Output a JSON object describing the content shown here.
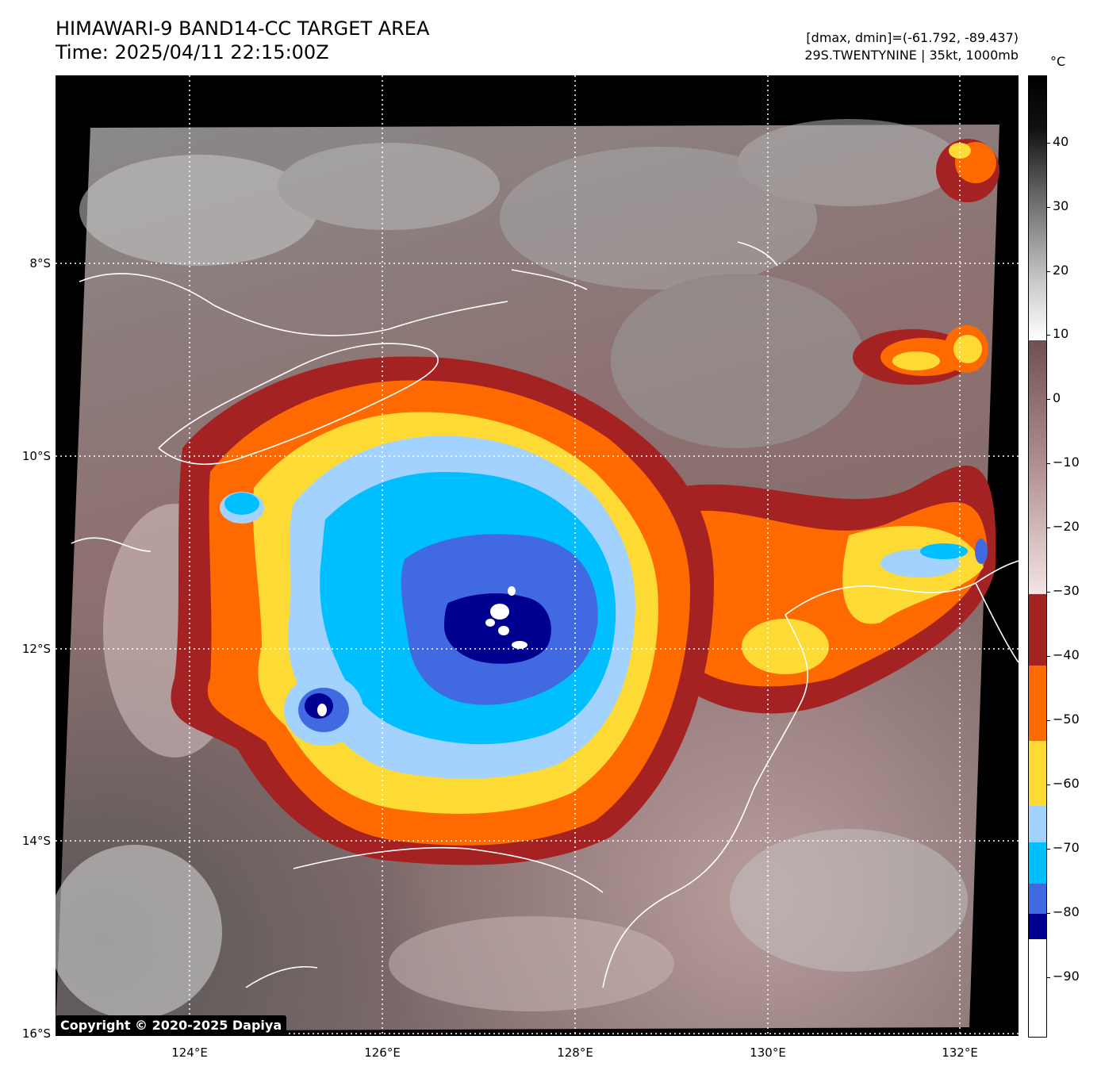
{
  "header": {
    "title": "HIMAWARI-9 BAND14-CC TARGET AREA",
    "time": "Time: 2025/04/11 22:15:00Z",
    "dminmax": "[dmax, dmin]=(-61.792, -89.437)",
    "storm": "29S.TWENTYNINE | 35kt, 1000mb"
  },
  "copyright": "Copyright © 2020-2025 Dapiya",
  "axes": {
    "lat_labels": [
      "8°S",
      "10°S",
      "12°S",
      "14°S",
      "16°S"
    ],
    "lon_labels": [
      "124°E",
      "126°E",
      "128°E",
      "130°E",
      "132°E"
    ]
  },
  "colorbar": {
    "unit": "°C",
    "ticks": [
      "40",
      "30",
      "20",
      "10",
      "0",
      "−10",
      "−20",
      "−30",
      "−40",
      "−50",
      "−60",
      "−70",
      "−80",
      "−90"
    ],
    "colors": {
      "white": "#ffffff",
      "dark_blue": "#000090",
      "royal_blue": "#4169e1",
      "sky_blue": "#00bfff",
      "light_blue": "#a3d2ff",
      "yellow": "#fdda34",
      "orange": "#ff6a00",
      "dark_red": "#a52222",
      "warm_brown": "#7a5353",
      "gray": "#909090"
    }
  }
}
